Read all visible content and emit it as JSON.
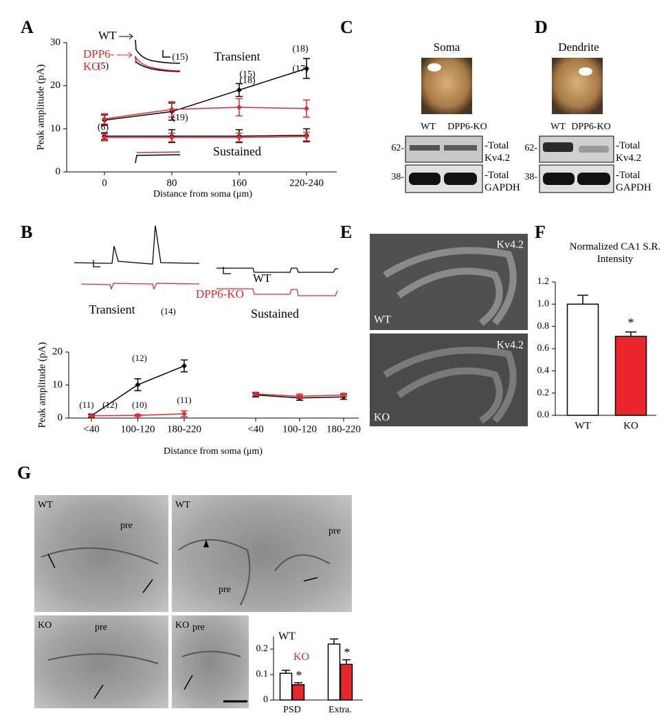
{
  "panel_letters": [
    "A",
    "B",
    "C",
    "D",
    "E",
    "F",
    "G"
  ],
  "chart_data": [
    {
      "type": "line",
      "y_label": "Peak amplitude (pA)",
      "x_label": "Distance from soma (μm)",
      "categories": [
        "0",
        "80",
        "160",
        "220-240"
      ],
      "ylim": [
        0,
        30
      ],
      "yticks": [
        0,
        10,
        20,
        30
      ],
      "series": [
        {
          "name": "WT",
          "color": "#000000",
          "values": [
            12,
            14,
            19,
            24
          ],
          "errors": [
            1.2,
            2,
            1.5,
            2.3
          ],
          "n_labels": [
            "(5)",
            "(15)",
            "(15)",
            "(18)"
          ]
        },
        {
          "name": "DPP6-KO",
          "color": "#e8262b",
          "values": [
            12.3,
            14.5,
            15,
            14.7
          ],
          "errors": [
            1.2,
            1.8,
            2,
            2
          ],
          "n_labels": [
            null,
            "(19)",
            "(18)",
            "(17)"
          ]
        },
        {
          "color": "#000000",
          "values": [
            8.3,
            8.3,
            8.3,
            8.5
          ],
          "errors": [
            0.8,
            1.5,
            1.5,
            1.5
          ],
          "n_labels": [
            "(6)",
            null,
            null,
            null
          ]
        },
        {
          "color": "#e8262b",
          "values": [
            8,
            8,
            8,
            8.2
          ],
          "errors": [
            0.8,
            1,
            1,
            1
          ]
        }
      ],
      "annotations": [
        "Transient",
        "Sustained"
      ]
    },
    {
      "type": "line",
      "y_label": "Peak amplitude (pA)",
      "x_label": "Distance from soma (μm)",
      "categories": [
        "<40",
        "100-120",
        "180-220",
        "<40",
        "100-120",
        "180-220"
      ],
      "ylim": [
        0,
        20
      ],
      "yticks": [
        0,
        10,
        20
      ],
      "series": [
        {
          "name": "WT",
          "color": "#000000",
          "values": [
            0.7,
            10.1,
            15.8,
            null,
            null,
            null
          ],
          "errors": [
            0.5,
            1.8,
            1.8,
            null,
            null,
            null
          ],
          "n_labels": [
            "(11)",
            "(12)",
            "(14)",
            null,
            null,
            null
          ]
        },
        {
          "name": "DPP6-KO",
          "color": "#e8262b",
          "values": [
            0.7,
            0.8,
            1.3,
            null,
            null,
            null
          ],
          "errors": [
            0.3,
            0.3,
            0.9,
            null,
            null,
            null
          ],
          "n_labels": [
            "(12)",
            "(10)",
            "(11)",
            null,
            null,
            null
          ]
        },
        {
          "color": "#000000",
          "values": [
            null,
            null,
            null,
            7.0,
            6.1,
            6.4
          ],
          "errors": [
            null,
            null,
            null,
            0.6,
            0.7,
            0.7
          ]
        },
        {
          "color": "#e8262b",
          "values": [
            null,
            null,
            null,
            7.3,
            6.6,
            7.0
          ],
          "errors": [
            null,
            null,
            null,
            0.5,
            0.7,
            0.5
          ]
        }
      ],
      "annotations": [
        "Transient",
        "Sustained"
      ]
    },
    {
      "type": "bar",
      "title": "Normalized CA1 S.R. Intensity",
      "categories": [
        "WT",
        "KO"
      ],
      "values": [
        1.0,
        0.71
      ],
      "errors": [
        0.08,
        0.04
      ],
      "colors": [
        "#ffffff",
        "#e8262b"
      ],
      "significance": [
        null,
        "*"
      ],
      "ylim": [
        0,
        1.2
      ],
      "yticks": [
        {
          "value": 0,
          "label": "0.0"
        },
        0.2,
        0.4,
        0.6,
        0.8,
        {
          "value": 1,
          "label": "1.0"
        },
        1.2
      ]
    },
    {
      "type": "grouped_bar",
      "categories": [
        "PSD",
        "Extra."
      ],
      "ylim": [
        0,
        0.25
      ],
      "yticks": [
        0,
        0.1,
        0.2
      ],
      "series": [
        {
          "name": "WT",
          "color": "#ffffff",
          "values": [
            0.105,
            0.22
          ],
          "errors": [
            0.012,
            0.02
          ]
        },
        {
          "name": "KO",
          "color": "#e8262b",
          "values": [
            0.06,
            0.14
          ],
          "errors": [
            0.008,
            0.018
          ],
          "significance": [
            "*",
            "*"
          ]
        }
      ]
    }
  ],
  "blots": [
    {
      "title": "Soma",
      "lanes": [
        "WT",
        "DPP6-KO"
      ],
      "markers": [
        "62-",
        "38-"
      ],
      "bands": [
        "-Total Kv4.2",
        "-Total GAPDH"
      ]
    },
    {
      "title": "Dendrite",
      "lanes": [
        "WT",
        "DPP6-KO"
      ],
      "markers": [
        "62-",
        "38-"
      ],
      "bands": [
        "-Total Kv4.2",
        "-Total GAPDH"
      ]
    }
  ],
  "hippocampus": {
    "stain": [
      "Kv4.2",
      "Kv4.2"
    ],
    "genotypes": [
      "WT",
      "KO"
    ]
  },
  "micrographs": [
    {
      "genotype": "WT",
      "labels": [
        "pre"
      ]
    },
    {
      "genotype": "WT",
      "labels": [
        "pre",
        "pre"
      ]
    },
    {
      "genotype": "KO",
      "labels": [
        "pre"
      ]
    },
    {
      "genotype": "KO",
      "labels": [
        "pre"
      ]
    }
  ]
}
